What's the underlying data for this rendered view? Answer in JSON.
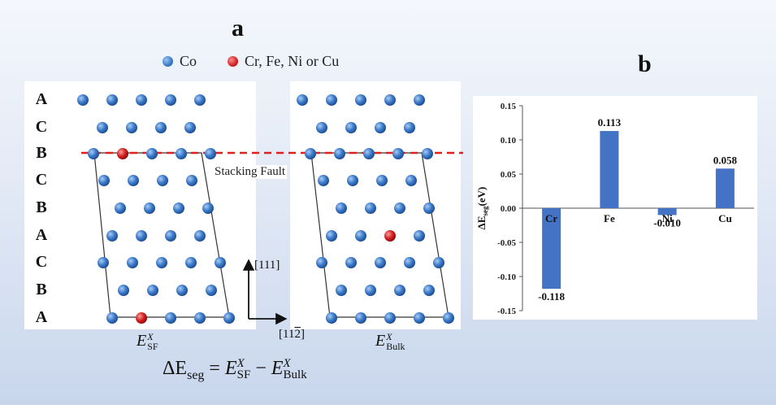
{
  "panel_a": {
    "label": "a",
    "legend": {
      "co_label": "Co",
      "solute_label": "Cr, Fe, Ni or Cu",
      "co_color": "#3a78c8",
      "solute_color": "#d62020"
    },
    "layer_letters": [
      "A",
      "C",
      "B",
      "C",
      "B",
      "A",
      "C",
      "B",
      "A"
    ],
    "stacking_fault_label": "Stacking Fault",
    "direction_up": "[111]",
    "direction_right": "[11",
    "direction_right_bar": "2",
    "direction_right_close": "]",
    "caption_left": {
      "base": "E",
      "sup": "X",
      "sub": "SF"
    },
    "caption_right": {
      "base": "E",
      "sup": "X",
      "sub": "Bulk"
    },
    "formula": {
      "lhs": "ΔE",
      "lhs_sub": "seg",
      "eq": " = ",
      "t1": "E",
      "t1_sup": "X",
      "t1_sub": "SF",
      "minus": " − ",
      "t2": "E",
      "t2_sup": "X",
      "t2_sub": "Bulk"
    }
  },
  "chart_data": {
    "type": "bar",
    "panel_label": "b",
    "categories": [
      "Cr",
      "Fe",
      "Ni",
      "Cu"
    ],
    "values": [
      -0.118,
      0.113,
      -0.01,
      0.058
    ],
    "value_labels": [
      "-0.118",
      "0.113",
      "-0.010",
      "0.058"
    ],
    "ylabel": "ΔE",
    "ylabel_sub": "seg",
    "ylabel_unit": "(eV)",
    "ylim": [
      -0.15,
      0.15
    ],
    "yticks": [
      0.15,
      0.1,
      0.05,
      0.0,
      -0.05,
      -0.1,
      -0.15
    ],
    "ytick_labels": [
      "0.15",
      "0.10",
      "0.05",
      "0.00",
      "-0.05",
      "-0.10",
      "-0.15"
    ],
    "bar_color": "#4472c4",
    "grid": false
  }
}
